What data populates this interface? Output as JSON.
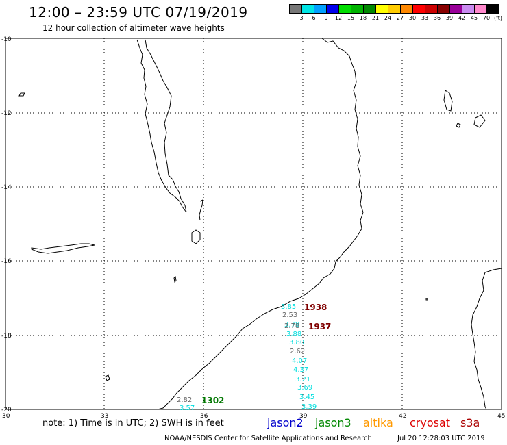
{
  "header": {
    "title": "12:00 – 23:59 UTC 07/19/2019",
    "subtitle": "12 hour collection of altimeter wave heights"
  },
  "color_scale": {
    "unit": "(ft)",
    "swatches": [
      "#777777",
      "#00e5e5",
      "#00a0ff",
      "#0000ee",
      "#00dd00",
      "#00b300",
      "#008800",
      "#ffff00",
      "#ffcc00",
      "#ff8800",
      "#ff0000",
      "#cc0000",
      "#880000",
      "#990099",
      "#c98bf0",
      "#ff88cc",
      "#000000"
    ],
    "labels": [
      "3",
      "6",
      "9",
      "12",
      "15",
      "18",
      "21",
      "24",
      "27",
      "30",
      "33",
      "36",
      "39",
      "42",
      "45",
      "70"
    ]
  },
  "axes": {
    "lat_labels": [
      "-10",
      "-12",
      "-14",
      "-16",
      "-18",
      "-20"
    ],
    "lon_labels": [
      "30",
      "33",
      "36",
      "39",
      "42",
      "45"
    ]
  },
  "wave_heights": [
    {
      "value": "3.85",
      "color": "#00dede"
    },
    {
      "value": "2.53",
      "color": "#666666"
    },
    {
      "value": "3.78",
      "color": "#00dede"
    },
    {
      "value": "2.78",
      "color": "#666666"
    },
    {
      "value": "3.88",
      "color": "#00dede"
    },
    {
      "value": "3.80",
      "color": "#00dede"
    },
    {
      "value": "2.62",
      "color": "#666666"
    },
    {
      "value": "4.07",
      "color": "#00dede"
    },
    {
      "value": "4.37",
      "color": "#00dede"
    },
    {
      "value": "3.21",
      "color": "#00dede"
    },
    {
      "value": "3.69",
      "color": "#00dede"
    },
    {
      "value": "3.45",
      "color": "#00dede"
    },
    {
      "value": "3.39",
      "color": "#00dede"
    },
    {
      "value": "2.82",
      "color": "#666666"
    },
    {
      "value": "3.57",
      "color": "#00dede"
    }
  ],
  "pass_labels": [
    {
      "text": "1938",
      "color": "#800000"
    },
    {
      "text": "1937",
      "color": "#800000"
    },
    {
      "text": "1302",
      "color": "#007700"
    }
  ],
  "footer": {
    "note": "note: 1) Time is in UTC; 2) SWH is in feet",
    "legend": [
      {
        "name": "jason2",
        "color": "#0000cc"
      },
      {
        "name": "jason3",
        "color": "#008800"
      },
      {
        "name": "altika",
        "color": "#ff9900"
      },
      {
        "name": "cryosat",
        "color": "#dd0000"
      },
      {
        "name": "s3a",
        "color": "#aa0000"
      }
    ],
    "credit": "NOAA/NESDIS Center for Satellite Applications and Research",
    "timestamp": "Jul 20 12:28:03 UTC 2019"
  }
}
